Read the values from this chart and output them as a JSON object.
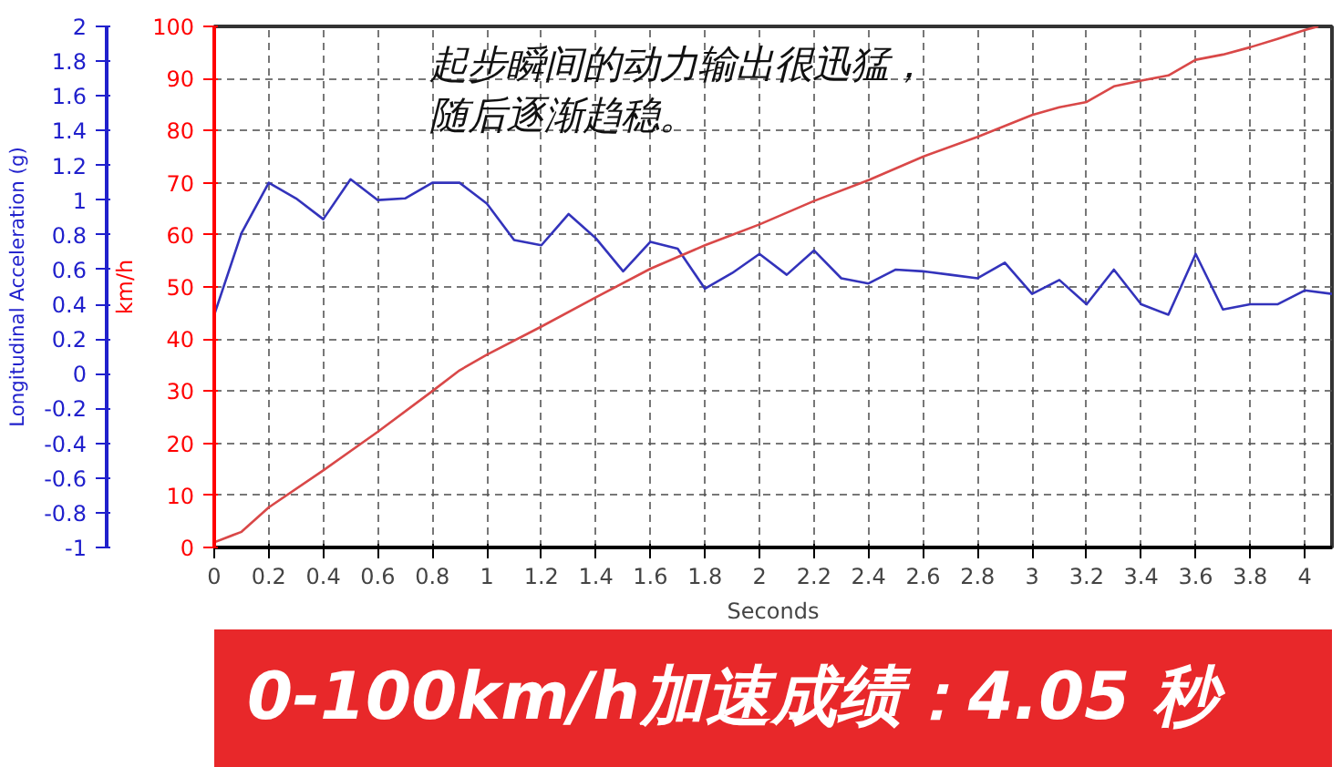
{
  "chart_data": {
    "type": "line",
    "xlabel": "Seconds",
    "ylabel": "km/h",
    "y2label": "Longitudinal Acceleration (g)",
    "xlim": [
      0,
      4.1
    ],
    "xticks": [
      0,
      0.2,
      0.4,
      0.6,
      0.8,
      1,
      1.2,
      1.4,
      1.6,
      1.8,
      2,
      2.2,
      2.4,
      2.6,
      2.8,
      3,
      3.2,
      3.4,
      3.6,
      3.8,
      4
    ],
    "ylim": [
      0,
      100
    ],
    "yticks": [
      0,
      10,
      20,
      30,
      40,
      50,
      60,
      70,
      80,
      90,
      100
    ],
    "y2lim": [
      -1,
      2
    ],
    "y2ticks": [
      -1,
      -0.8,
      -0.6,
      -0.4,
      -0.2,
      0,
      0.2,
      0.4,
      0.6,
      0.8,
      1,
      1.2,
      1.4,
      1.6,
      1.8,
      2
    ],
    "grid": true,
    "line_style": "solid",
    "series": [
      {
        "color": "#3333bb",
        "axis": "y2",
        "x": [
          0,
          0.1,
          0.2,
          0.3,
          0.4,
          0.5,
          0.6,
          0.7,
          0.8,
          0.9,
          1.0,
          1.1,
          1.2,
          1.3,
          1.4,
          1.5,
          1.6,
          1.7,
          1.8,
          1.9,
          2.0,
          2.1,
          2.2,
          2.3,
          2.4,
          2.5,
          2.6,
          2.7,
          2.8,
          2.9,
          3.0,
          3.1,
          3.2,
          3.3,
          3.4,
          3.5,
          3.6,
          3.7,
          3.8,
          3.9,
          4.0,
          4.1
        ],
        "values": [
          0.34,
          0.81,
          1.1,
          1.01,
          0.89,
          1.12,
          1.0,
          1.01,
          1.1,
          1.1,
          0.98,
          0.77,
          0.74,
          0.92,
          0.78,
          0.59,
          0.76,
          0.72,
          0.49,
          0.58,
          0.69,
          0.57,
          0.71,
          0.55,
          0.52,
          0.6,
          0.59,
          0.57,
          0.55,
          0.64,
          0.46,
          0.54,
          0.4,
          0.6,
          0.4,
          0.34,
          0.69,
          0.37,
          0.4,
          0.4,
          0.48,
          0.46
        ]
      },
      {
        "color": "#d94848",
        "x": [
          0,
          0.1,
          0.2,
          0.4,
          0.6,
          0.8,
          0.9,
          1.0,
          1.2,
          1.4,
          1.6,
          1.8,
          2.0,
          2.2,
          2.4,
          2.6,
          2.8,
          3.0,
          3.1,
          3.2,
          3.3,
          3.4,
          3.5,
          3.6,
          3.7,
          3.8,
          3.9,
          4.0,
          4.05
        ],
        "values": [
          1,
          3,
          7.7,
          14.8,
          22.2,
          30,
          34,
          37,
          42.4,
          48,
          53.5,
          58,
          62,
          66.5,
          70.5,
          75,
          78.8,
          83,
          84.5,
          85.5,
          88.5,
          89.6,
          90.6,
          93.6,
          94.6,
          96,
          97.6,
          99.3,
          100
        ]
      }
    ],
    "annotations": [
      "起步瞬间的动力输出很迅猛，",
      "随后逐渐趋稳。",
      "0-100km/h加速成绩：4.05 秒"
    ]
  }
}
